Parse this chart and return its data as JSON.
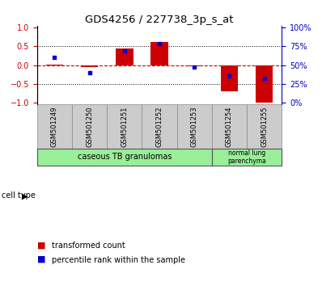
{
  "title": "GDS4256 / 227738_3p_s_at",
  "samples": [
    "GSM501249",
    "GSM501250",
    "GSM501251",
    "GSM501252",
    "GSM501253",
    "GSM501254",
    "GSM501255"
  ],
  "red_bars": [
    0.02,
    -0.05,
    0.45,
    0.62,
    -0.03,
    -0.7,
    -1.0
  ],
  "blue_dots": [
    0.2,
    -0.2,
    0.37,
    0.57,
    -0.05,
    -0.28,
    -0.35
  ],
  "left_yticks": [
    1,
    0.5,
    0,
    -0.5,
    -1
  ],
  "right_yticks": [
    100,
    75,
    50,
    25,
    0
  ],
  "bar_color": "#cc0000",
  "dot_color": "#0000cc",
  "background_color": "#ffffff",
  "bar_width": 0.5,
  "ylim_left": [
    -1.05,
    1.05
  ],
  "cell_type_label1": "caseous TB granulomas",
  "cell_type_label2": "normal lung\nparenchyma",
  "cell_type_color": "#99ee99",
  "sample_bg_color": "#cccccc",
  "legend_red": "transformed count",
  "legend_blue": "percentile rank within the sample"
}
